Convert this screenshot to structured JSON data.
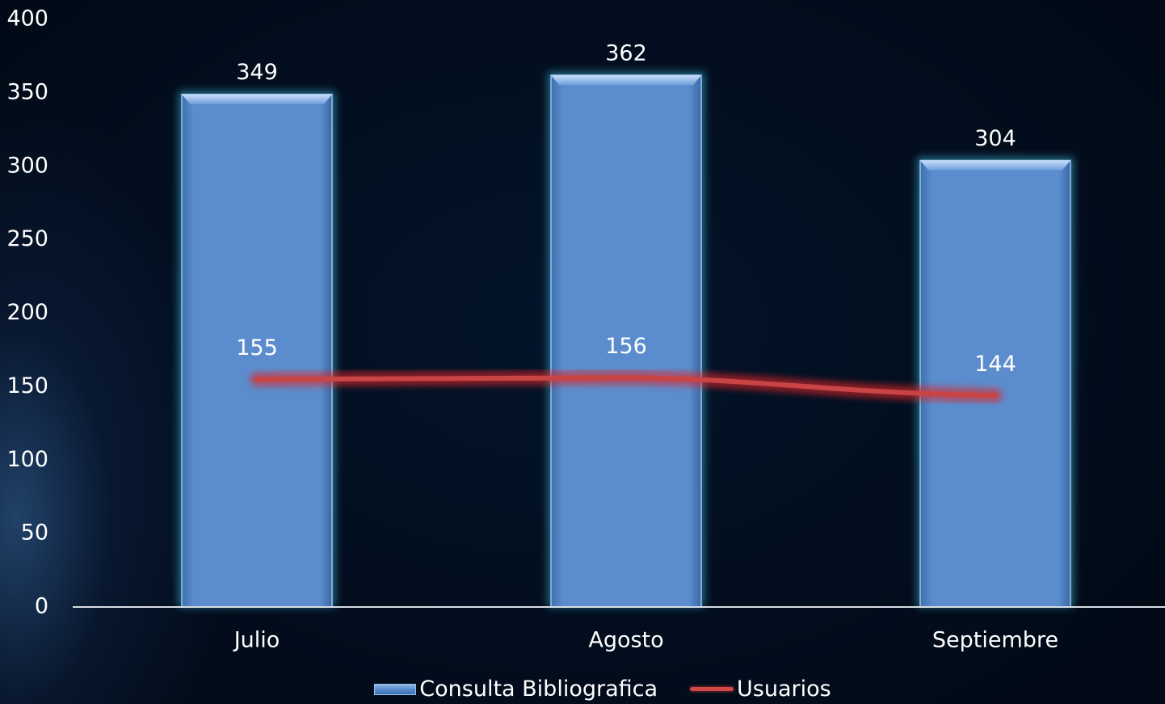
{
  "chart_data": {
    "type": "bar",
    "categories": [
      "Julio",
      "Agosto",
      "Septiembre"
    ],
    "series": [
      {
        "name": "Consulta Bibliografica",
        "type": "bar",
        "values": [
          349,
          362,
          304
        ]
      },
      {
        "name": "Usuarios",
        "type": "line",
        "values": [
          155,
          156,
          144
        ]
      }
    ],
    "yticks": [
      "0",
      "50",
      "100",
      "150",
      "200",
      "250",
      "300",
      "350",
      "400"
    ],
    "ylim": [
      0,
      400
    ],
    "grid": false,
    "legend_position": "bottom",
    "colors": {
      "bar": "#5b8dce",
      "bar_edge": "#9cc2f0",
      "bar_glow": "#3fb8d8",
      "line": "#c94444",
      "line_glow": "#e02828",
      "text": "#ffffff",
      "background": "#020f1f"
    }
  },
  "legend": {
    "bar_label": "Consulta Bibliografica",
    "line_label": "Usuarios"
  }
}
